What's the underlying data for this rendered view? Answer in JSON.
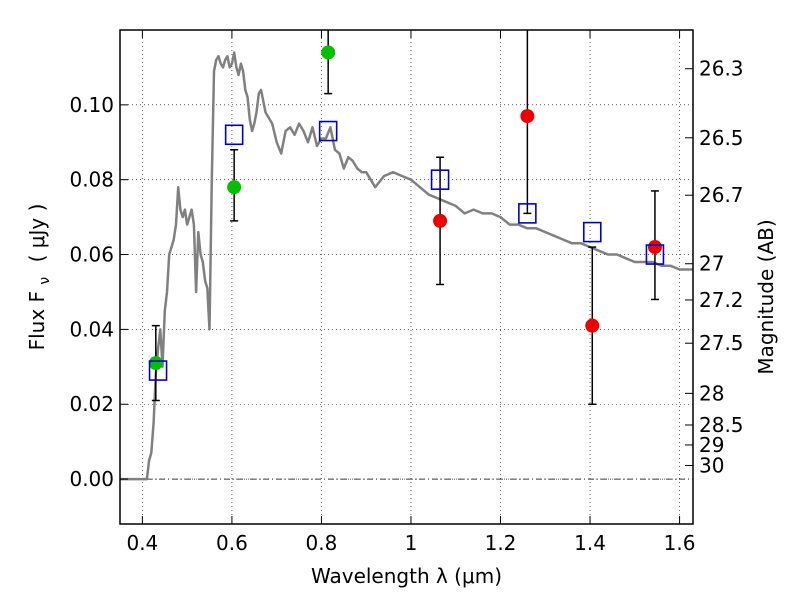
{
  "chart_data": {
    "type": "scatter",
    "title": "",
    "xlabel": "Wavelength  λ (μm)",
    "ylabel": "Flux  F",
    "ylabel_sub": "ν",
    "ylabel_unit": "( μJy )",
    "y2label": "Magnitude (AB)",
    "xlim": [
      0.35,
      1.63
    ],
    "ylim": [
      -0.012,
      0.12
    ],
    "grid": true,
    "x_ticks": [
      {
        "value": 0.4,
        "label": "0.4"
      },
      {
        "value": 0.6,
        "label": "0.6"
      },
      {
        "value": 0.8,
        "label": "0.8"
      },
      {
        "value": 1.0,
        "label": "1"
      },
      {
        "value": 1.2,
        "label": "1.2"
      },
      {
        "value": 1.4,
        "label": "1.4"
      },
      {
        "value": 1.6,
        "label": "1.6"
      }
    ],
    "y_ticks": [
      {
        "value": 0.0,
        "label": "0.00"
      },
      {
        "value": 0.02,
        "label": "0.02"
      },
      {
        "value": 0.04,
        "label": "0.04"
      },
      {
        "value": 0.06,
        "label": "0.06"
      },
      {
        "value": 0.08,
        "label": "0.08"
      },
      {
        "value": 0.1,
        "label": "0.10"
      }
    ],
    "y2_ticks": [
      {
        "value": 26.3,
        "label": "26.3"
      },
      {
        "value": 26.5,
        "label": "26.5"
      },
      {
        "value": 26.7,
        "label": "26.7"
      },
      {
        "value": 27.0,
        "label": "27"
      },
      {
        "value": 27.2,
        "label": "27.2"
      },
      {
        "value": 27.5,
        "label": "27.5"
      },
      {
        "value": 28.0,
        "label": "28"
      },
      {
        "value": 28.5,
        "label": "28.5"
      },
      {
        "value": 29.0,
        "label": "29"
      },
      {
        "value": 30.0,
        "label": "30"
      }
    ],
    "colors": {
      "model": "#808080",
      "green": "#00c000",
      "red": "#ee0000",
      "blue": "#0000cc",
      "error": "#000000",
      "zero_line": "#000000"
    },
    "series": [
      {
        "name": "SED model",
        "kind": "line",
        "x": [
          0.35,
          0.41,
          0.415,
          0.42,
          0.425,
          0.43,
          0.435,
          0.44,
          0.445,
          0.45,
          0.455,
          0.46,
          0.465,
          0.47,
          0.475,
          0.48,
          0.485,
          0.49,
          0.495,
          0.5,
          0.505,
          0.51,
          0.515,
          0.52,
          0.525,
          0.53,
          0.535,
          0.54,
          0.545,
          0.55,
          0.555,
          0.56,
          0.565,
          0.57,
          0.575,
          0.58,
          0.585,
          0.59,
          0.595,
          0.6,
          0.605,
          0.61,
          0.615,
          0.62,
          0.625,
          0.63,
          0.635,
          0.64,
          0.645,
          0.65,
          0.655,
          0.66,
          0.665,
          0.67,
          0.675,
          0.68,
          0.69,
          0.7,
          0.71,
          0.72,
          0.73,
          0.74,
          0.75,
          0.76,
          0.77,
          0.78,
          0.79,
          0.8,
          0.81,
          0.82,
          0.83,
          0.84,
          0.85,
          0.86,
          0.87,
          0.88,
          0.89,
          0.9,
          0.92,
          0.94,
          0.96,
          0.98,
          1.0,
          1.02,
          1.04,
          1.06,
          1.08,
          1.1,
          1.12,
          1.14,
          1.16,
          1.18,
          1.2,
          1.22,
          1.24,
          1.26,
          1.28,
          1.3,
          1.32,
          1.34,
          1.36,
          1.38,
          1.4,
          1.42,
          1.44,
          1.46,
          1.48,
          1.5,
          1.52,
          1.54,
          1.56,
          1.58,
          1.6,
          1.63
        ],
        "y": [
          0.0,
          0.0,
          0.005,
          0.007,
          0.015,
          0.028,
          0.035,
          0.04,
          0.03,
          0.045,
          0.05,
          0.06,
          0.062,
          0.064,
          0.068,
          0.078,
          0.072,
          0.07,
          0.072,
          0.068,
          0.07,
          0.072,
          0.068,
          0.05,
          0.066,
          0.06,
          0.058,
          0.053,
          0.051,
          0.04,
          0.08,
          0.109,
          0.112,
          0.113,
          0.111,
          0.11,
          0.112,
          0.113,
          0.11,
          0.111,
          0.114,
          0.11,
          0.108,
          0.111,
          0.109,
          0.104,
          0.102,
          0.096,
          0.093,
          0.095,
          0.098,
          0.103,
          0.104,
          0.101,
          0.098,
          0.097,
          0.095,
          0.09,
          0.087,
          0.093,
          0.094,
          0.092,
          0.095,
          0.093,
          0.09,
          0.094,
          0.089,
          0.091,
          0.091,
          0.094,
          0.088,
          0.087,
          0.083,
          0.086,
          0.085,
          0.083,
          0.082,
          0.082,
          0.078,
          0.081,
          0.082,
          0.081,
          0.08,
          0.078,
          0.076,
          0.075,
          0.074,
          0.073,
          0.071,
          0.072,
          0.071,
          0.071,
          0.07,
          0.068,
          0.068,
          0.067,
          0.067,
          0.066,
          0.065,
          0.064,
          0.063,
          0.063,
          0.062,
          0.061,
          0.06,
          0.06,
          0.059,
          0.058,
          0.058,
          0.058,
          0.057,
          0.057,
          0.056,
          0.056
        ]
      },
      {
        "name": "Green observations",
        "kind": "points",
        "marker": "circle",
        "points": [
          {
            "x": 0.43,
            "y": 0.031,
            "err_lo": 0.021,
            "err_hi": 0.041
          },
          {
            "x": 0.605,
            "y": 0.078,
            "err_lo": 0.069,
            "err_hi": 0.088
          },
          {
            "x": 0.815,
            "y": 0.114,
            "err_lo": 0.103,
            "err_hi": 0.125
          }
        ]
      },
      {
        "name": "Red observations",
        "kind": "points",
        "marker": "circle",
        "points": [
          {
            "x": 1.065,
            "y": 0.069,
            "err_lo": 0.052,
            "err_hi": 0.086
          },
          {
            "x": 1.26,
            "y": 0.097,
            "err_lo": 0.071,
            "err_hi": 0.125
          },
          {
            "x": 1.405,
            "y": 0.041,
            "err_lo": 0.02,
            "err_hi": 0.062
          },
          {
            "x": 1.545,
            "y": 0.062,
            "err_lo": 0.048,
            "err_hi": 0.077
          }
        ]
      },
      {
        "name": "Model photometry",
        "kind": "points",
        "marker": "open-square",
        "points": [
          {
            "x": 0.435,
            "y": 0.029
          },
          {
            "x": 0.605,
            "y": 0.092
          },
          {
            "x": 0.815,
            "y": 0.093
          },
          {
            "x": 1.065,
            "y": 0.08
          },
          {
            "x": 1.26,
            "y": 0.071
          },
          {
            "x": 1.405,
            "y": 0.066
          },
          {
            "x": 1.545,
            "y": 0.06
          }
        ]
      }
    ]
  }
}
